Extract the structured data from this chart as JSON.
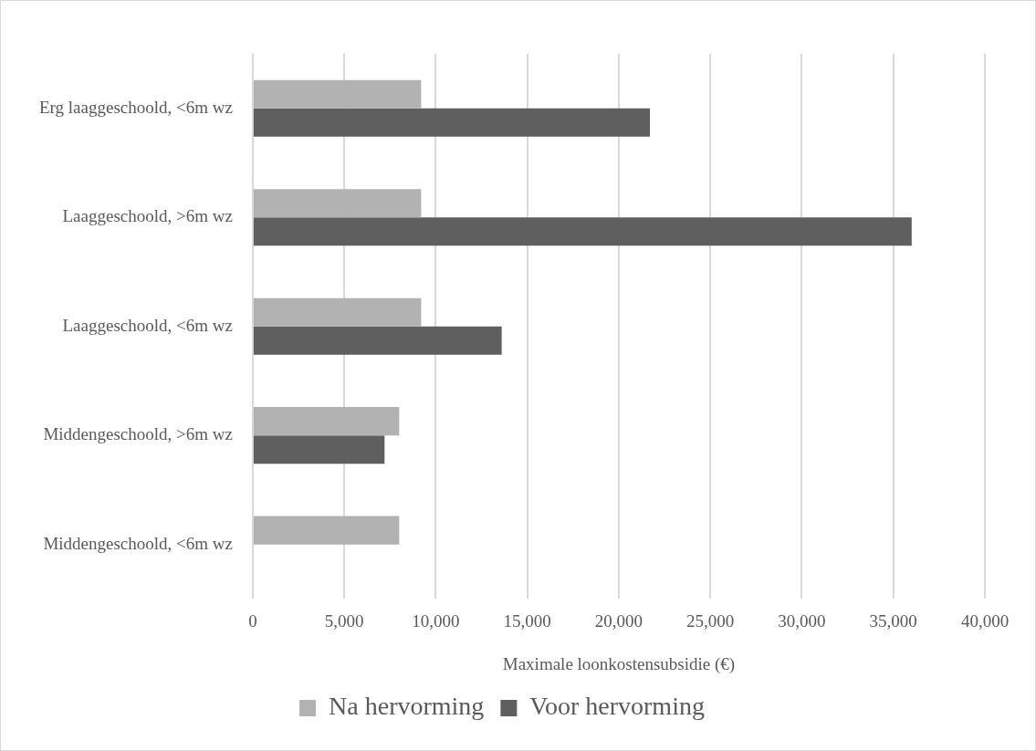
{
  "chart_data": {
    "type": "bar",
    "orientation": "horizontal",
    "xlabel": "Maximale loonkostensubsidie (€)",
    "categories": [
      "Erg laaggeschoold, <6m wz",
      "Laaggeschoold, >6m wz",
      "Laaggeschoold, <6m wz",
      "Middengeschoold, >6m wz",
      "Middengeschoold, <6m wz"
    ],
    "series": [
      {
        "name": "Na hervorming",
        "color": "#b2b2b2",
        "values": [
          9200,
          9200,
          9200,
          8000,
          8000
        ]
      },
      {
        "name": "Voor hervorming",
        "color": "#5f5f5f",
        "values": [
          21700,
          36000,
          13600,
          7200,
          null
        ]
      }
    ],
    "xlim": [
      0,
      40000
    ],
    "xticks": [
      0,
      {
        "value": 5000,
        "label": "5,000"
      },
      {
        "value": 10000,
        "label": "10,000"
      },
      {
        "value": 15000,
        "label": "15,000"
      },
      {
        "value": 20000,
        "label": "20,000"
      },
      {
        "value": 25000,
        "label": "25,000"
      },
      {
        "value": 30000,
        "label": "30,000"
      },
      {
        "value": 35000,
        "label": "35,000"
      },
      {
        "value": 40000,
        "label": "40,000"
      }
    ],
    "grid": "x",
    "legend": "bottom"
  }
}
